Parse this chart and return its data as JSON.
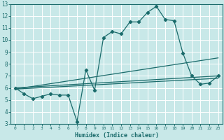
{
  "xlabel": "Humidex (Indice chaleur)",
  "xlim": [
    -0.5,
    23.5
  ],
  "ylim": [
    3,
    13
  ],
  "yticks": [
    3,
    4,
    5,
    6,
    7,
    8,
    9,
    10,
    11,
    12,
    13
  ],
  "xticks": [
    0,
    1,
    2,
    3,
    4,
    5,
    6,
    7,
    8,
    9,
    10,
    11,
    12,
    13,
    14,
    15,
    16,
    17,
    18,
    19,
    20,
    21,
    22,
    23
  ],
  "bg_color": "#c8e8e8",
  "line_color": "#1a6b6b",
  "grid_color": "#b0d8d8",
  "series1_x": [
    0,
    1,
    2,
    3,
    4,
    5,
    6,
    7,
    8,
    9,
    10,
    11,
    12,
    13,
    14,
    15,
    16,
    17,
    18,
    19,
    20,
    21,
    22,
    23
  ],
  "series1_y": [
    6.0,
    5.5,
    5.1,
    5.3,
    5.5,
    5.4,
    5.4,
    3.2,
    7.5,
    5.8,
    10.2,
    10.7,
    10.5,
    11.5,
    11.5,
    12.3,
    12.8,
    11.7,
    11.6,
    8.9,
    7.0,
    6.3,
    6.4,
    7.0
  ],
  "series2_x": [
    0,
    23
  ],
  "series2_y": [
    5.9,
    8.5
  ],
  "series3_x": [
    0,
    23
  ],
  "series3_y": [
    6.0,
    7.0
  ],
  "series4_x": [
    0,
    23
  ],
  "series4_y": [
    5.9,
    6.8
  ]
}
